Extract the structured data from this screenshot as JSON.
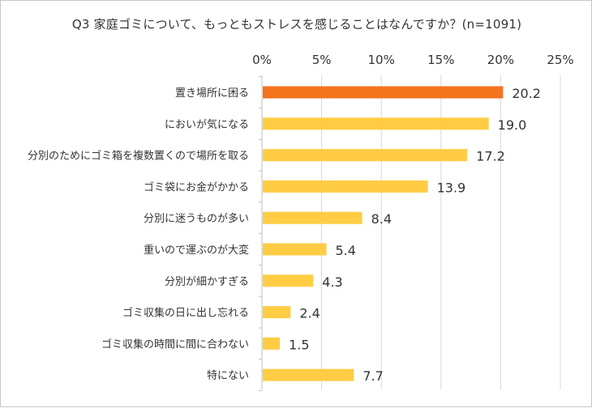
{
  "chart_data": {
    "type": "bar",
    "orientation": "horizontal",
    "title": "Q3 家庭ゴミについて、もっともストレスを感じることはなんですか？(n=1091)",
    "categories": [
      "置き場所に困る",
      "においが気になる",
      "分別のためにゴミ箱を複数置くので場所を取る",
      "ゴミ袋にお金がかかる",
      "分別に迷うものが多い",
      "重いので運ぶのが大変",
      "分別が細かすぎる",
      "ゴミ収集の日に出し忘れる",
      "ゴミ収集の時間に間に合わない",
      "特にない"
    ],
    "values": [
      20.2,
      19.0,
      17.2,
      13.9,
      8.4,
      5.4,
      4.3,
      2.4,
      1.5,
      7.7
    ],
    "value_labels": [
      "20.2",
      "19.0",
      "17.2",
      "13.9",
      "8.4",
      "5.4",
      "4.3",
      "2.4",
      "1.5",
      "7.7"
    ],
    "xlim": [
      0,
      25
    ],
    "x_ticks": [
      "0%",
      "5%",
      "10%",
      "15%",
      "20%",
      "25%"
    ],
    "x_axis_position": "top",
    "grid": true,
    "highlight_index": 0,
    "colors": {
      "bar": "#ffcc44",
      "highlight_bar": "#f4741e",
      "highlight_label": "#f0962e",
      "grid": "#d9d9d9",
      "axis": "#bfbfbf"
    }
  }
}
